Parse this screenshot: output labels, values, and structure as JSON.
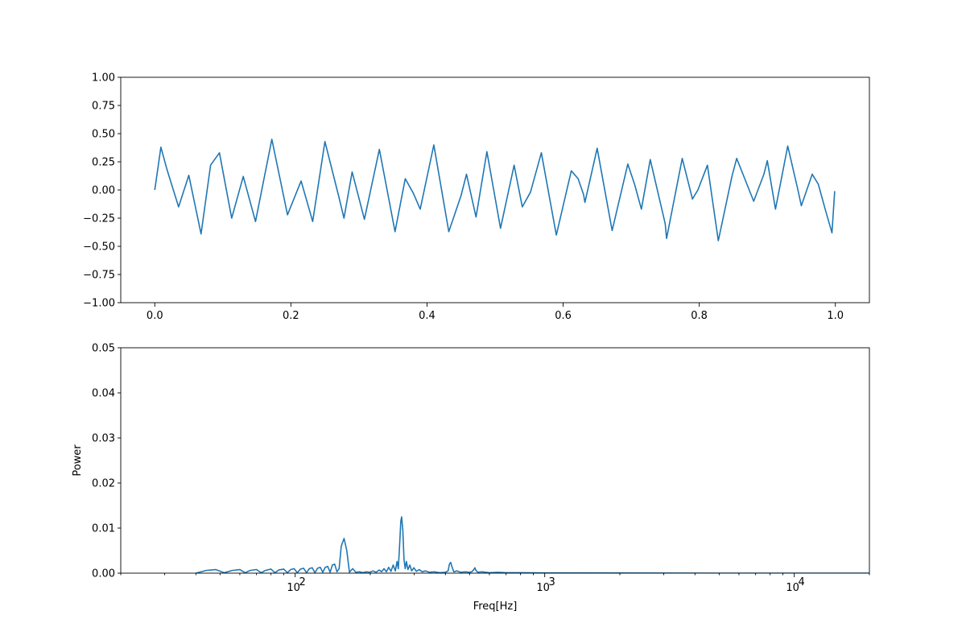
{
  "chart_data": [
    {
      "type": "line",
      "title": "",
      "xlabel": "",
      "ylabel": "",
      "xlim": [
        -0.05,
        1.05
      ],
      "ylim": [
        -1.0,
        1.0
      ],
      "xscale": "linear",
      "x_ticks": [
        0.0,
        0.2,
        0.4,
        0.6,
        0.8,
        1.0
      ],
      "x_tick_labels": [
        "0.0",
        "0.2",
        "0.4",
        "0.6",
        "0.8",
        "1.0"
      ],
      "y_ticks": [
        -1.0,
        -0.75,
        -0.5,
        -0.25,
        0.0,
        0.25,
        0.5,
        0.75,
        1.0
      ],
      "y_tick_labels": [
        "−1.00",
        "−0.75",
        "−0.50",
        "−0.25",
        "0.00",
        "0.25",
        "0.50",
        "0.75",
        "1.00"
      ],
      "grid": false,
      "series": [
        {
          "color": "#1f77b4",
          "points": [
            [
              0.0,
              0.0
            ],
            [
              0.009,
              0.38
            ],
            [
              0.018,
              0.18
            ],
            [
              0.035,
              -0.15
            ],
            [
              0.05,
              0.13
            ],
            [
              0.068,
              -0.39
            ],
            [
              0.082,
              0.22
            ],
            [
              0.095,
              0.33
            ],
            [
              0.113,
              -0.25
            ],
            [
              0.13,
              0.12
            ],
            [
              0.148,
              -0.28
            ],
            [
              0.172,
              0.45
            ],
            [
              0.195,
              -0.22
            ],
            [
              0.215,
              0.08
            ],
            [
              0.232,
              -0.28
            ],
            [
              0.25,
              0.43
            ],
            [
              0.27,
              -0.05
            ],
            [
              0.278,
              -0.25
            ],
            [
              0.29,
              0.16
            ],
            [
              0.308,
              -0.26
            ],
            [
              0.33,
              0.36
            ],
            [
              0.353,
              -0.37
            ],
            [
              0.368,
              0.1
            ],
            [
              0.38,
              -0.03
            ],
            [
              0.39,
              -0.17
            ],
            [
              0.41,
              0.4
            ],
            [
              0.432,
              -0.37
            ],
            [
              0.45,
              -0.05
            ],
            [
              0.458,
              0.14
            ],
            [
              0.472,
              -0.24
            ],
            [
              0.488,
              0.34
            ],
            [
              0.508,
              -0.34
            ],
            [
              0.528,
              0.22
            ],
            [
              0.54,
              -0.15
            ],
            [
              0.552,
              -0.02
            ],
            [
              0.568,
              0.33
            ],
            [
              0.59,
              -0.4
            ],
            [
              0.612,
              0.17
            ],
            [
              0.622,
              0.1
            ],
            [
              0.63,
              -0.04
            ],
            [
              0.632,
              -0.11
            ],
            [
              0.65,
              0.37
            ],
            [
              0.672,
              -0.36
            ],
            [
              0.695,
              0.23
            ],
            [
              0.705,
              0.05
            ],
            [
              0.715,
              -0.17
            ],
            [
              0.728,
              0.27
            ],
            [
              0.75,
              -0.3
            ],
            [
              0.752,
              -0.43
            ],
            [
              0.775,
              0.28
            ],
            [
              0.79,
              -0.08
            ],
            [
              0.798,
              0.0
            ],
            [
              0.812,
              0.22
            ],
            [
              0.828,
              -0.45
            ],
            [
              0.848,
              0.12
            ],
            [
              0.855,
              0.28
            ],
            [
              0.88,
              -0.1
            ],
            [
              0.895,
              0.14
            ],
            [
              0.9,
              0.26
            ],
            [
              0.912,
              -0.17
            ],
            [
              0.93,
              0.39
            ],
            [
              0.945,
              0.0
            ],
            [
              0.95,
              -0.14
            ],
            [
              0.966,
              0.14
            ],
            [
              0.975,
              0.05
            ],
            [
              0.985,
              -0.17
            ],
            [
              0.995,
              -0.38
            ],
            [
              0.999,
              -0.01
            ]
          ]
        }
      ]
    },
    {
      "type": "line",
      "title": "",
      "xlabel": "Freq[Hz]",
      "ylabel": "Power",
      "xlim": [
        20,
        20000
      ],
      "ylim": [
        0.0,
        0.05
      ],
      "xscale": "log",
      "x_ticks": [
        100,
        1000,
        10000
      ],
      "x_tick_labels": [
        {
          "base": "10",
          "exp": "2"
        },
        {
          "base": "10",
          "exp": "3"
        },
        {
          "base": "10",
          "exp": "4"
        }
      ],
      "y_ticks": [
        0.0,
        0.01,
        0.02,
        0.03,
        0.04,
        0.05
      ],
      "y_tick_labels": [
        "0.00",
        "0.01",
        "0.02",
        "0.03",
        "0.04",
        "0.05"
      ],
      "grid": false,
      "series": [
        {
          "color": "#1f77b4",
          "points": [
            [
              40,
              0.0
            ],
            [
              44,
              0.0006
            ],
            [
              48,
              0.0008
            ],
            [
              52,
              0.0001
            ],
            [
              56,
              0.0006
            ],
            [
              60,
              0.0008
            ],
            [
              63,
              0.0001
            ],
            [
              66,
              0.0006
            ],
            [
              70,
              0.0008
            ],
            [
              73,
              0.0001
            ],
            [
              76,
              0.0006
            ],
            [
              80,
              0.0009
            ],
            [
              83,
              0.0001
            ],
            [
              86,
              0.0007
            ],
            [
              90,
              0.0009
            ],
            [
              93,
              0.0001
            ],
            [
              96,
              0.0008
            ],
            [
              99,
              0.001
            ],
            [
              102,
              0.0001
            ],
            [
              105,
              0.0009
            ],
            [
              108,
              0.0011
            ],
            [
              111,
              0.0001
            ],
            [
              114,
              0.001
            ],
            [
              117,
              0.0012
            ],
            [
              120,
              0.0001
            ],
            [
              123,
              0.0011
            ],
            [
              126,
              0.0013
            ],
            [
              129,
              0.0002
            ],
            [
              132,
              0.0013
            ],
            [
              135,
              0.0015
            ],
            [
              138,
              0.0002
            ],
            [
              141,
              0.0018
            ],
            [
              144,
              0.002
            ],
            [
              147,
              0.0003
            ],
            [
              150,
              0.001
            ],
            [
              153,
              0.006
            ],
            [
              157,
              0.0077
            ],
            [
              161,
              0.005
            ],
            [
              165,
              0.0002
            ],
            [
              170,
              0.001
            ],
            [
              175,
              0.0002
            ],
            [
              181,
              0.0003
            ],
            [
              187,
              0.0001
            ],
            [
              193,
              0.0003
            ],
            [
              199,
              0.0002
            ],
            [
              205,
              0.0005
            ],
            [
              211,
              0.0002
            ],
            [
              217,
              0.0007
            ],
            [
              222,
              0.0003
            ],
            [
              227,
              0.001
            ],
            [
              232,
              0.0003
            ],
            [
              237,
              0.0013
            ],
            [
              242,
              0.0004
            ],
            [
              247,
              0.0018
            ],
            [
              252,
              0.0005
            ],
            [
              256,
              0.0026
            ],
            [
              259,
              0.001
            ],
            [
              262,
              0.006
            ],
            [
              265,
              0.0115
            ],
            [
              267,
              0.0125
            ],
            [
              270,
              0.0095
            ],
            [
              273,
              0.003
            ],
            [
              276,
              0.001
            ],
            [
              279,
              0.0026
            ],
            [
              283,
              0.0008
            ],
            [
              288,
              0.0018
            ],
            [
              293,
              0.0005
            ],
            [
              299,
              0.0012
            ],
            [
              306,
              0.0004
            ],
            [
              314,
              0.0008
            ],
            [
              323,
              0.0003
            ],
            [
              333,
              0.0005
            ],
            [
              345,
              0.0002
            ],
            [
              360,
              0.0003
            ],
            [
              380,
              0.0001
            ],
            [
              400,
              0.0002
            ],
            [
              410,
              0.0005
            ],
            [
              415,
              0.002
            ],
            [
              420,
              0.0024
            ],
            [
              425,
              0.0014
            ],
            [
              432,
              0.0003
            ],
            [
              445,
              0.0005
            ],
            [
              460,
              0.0002
            ],
            [
              480,
              0.0003
            ],
            [
              500,
              0.0002
            ],
            [
              510,
              0.0003
            ],
            [
              520,
              0.0008
            ],
            [
              525,
              0.0012
            ],
            [
              530,
              0.0006
            ],
            [
              540,
              0.0002
            ],
            [
              560,
              0.0003
            ],
            [
              600,
              0.0001
            ],
            [
              650,
              0.0002
            ],
            [
              700,
              0.0001
            ],
            [
              800,
              0.0001
            ],
            [
              1000,
              5e-05
            ],
            [
              2000,
              3e-05
            ],
            [
              5000,
              0.0
            ],
            [
              20000,
              0.0
            ]
          ]
        }
      ]
    }
  ]
}
